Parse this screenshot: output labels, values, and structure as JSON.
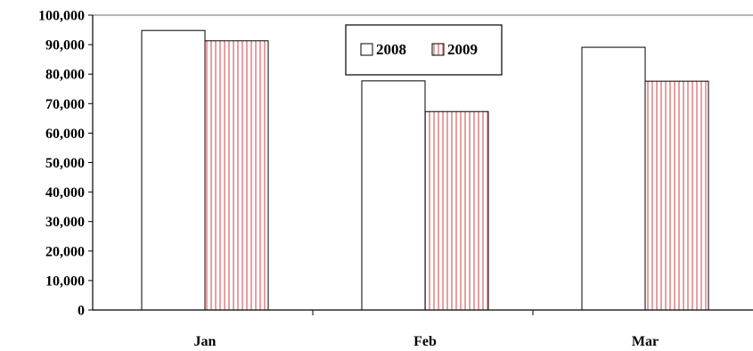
{
  "colors": {
    "background": "#ffffff",
    "bar_2008_fill": "#ffffff",
    "bar_2009_fill": "#ffffff",
    "bar_2009_stripe": "#e8a0a0",
    "bar_stroke": "#000000",
    "axis": "#000000",
    "top_border": "#888888"
  },
  "chart_data": {
    "type": "bar",
    "categories": [
      "Jan",
      "Feb",
      "Mar"
    ],
    "series": [
      {
        "name": "2008",
        "values": [
          94800,
          77700,
          89100
        ],
        "pattern": "solid-white"
      },
      {
        "name": "2009",
        "values": [
          91300,
          67300,
          77600
        ],
        "pattern": "vertical-stripes"
      }
    ],
    "title": "",
    "xlabel": "",
    "ylabel": "",
    "ylim": [
      0,
      100000
    ],
    "yticks": [
      0,
      10000,
      20000,
      30000,
      40000,
      50000,
      60000,
      70000,
      80000,
      90000,
      100000
    ],
    "ytick_labels": [
      "0",
      "10,000",
      "20,000",
      "30,000",
      "40,000",
      "50,000",
      "60,000",
      "70,000",
      "80,000",
      "90,000",
      "100,000"
    ],
    "grid": false,
    "legend_position": "top-center"
  }
}
